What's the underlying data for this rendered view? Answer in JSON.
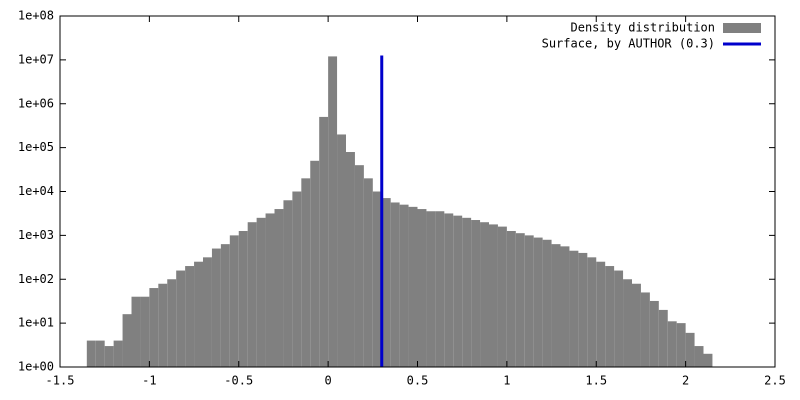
{
  "chart_data": {
    "type": "histogram",
    "log_y": true,
    "bins": [
      -1.35,
      -1.3,
      -1.25,
      -1.2,
      -1.15,
      -1.1,
      -1.05,
      -1.0,
      -0.95,
      -0.9,
      -0.85,
      -0.8,
      -0.75,
      -0.7,
      -0.65,
      -0.6,
      -0.55,
      -0.5,
      -0.45,
      -0.4,
      -0.35,
      -0.3,
      -0.25,
      -0.2,
      -0.15,
      -0.1,
      -0.05,
      0.0,
      0.05,
      0.1,
      0.15,
      0.2,
      0.25,
      0.3,
      0.35,
      0.4,
      0.45,
      0.5,
      0.55,
      0.6,
      0.65,
      0.7,
      0.75,
      0.8,
      0.85,
      0.9,
      0.95,
      1.0,
      1.05,
      1.1,
      1.15,
      1.2,
      1.25,
      1.3,
      1.35,
      1.4,
      1.45,
      1.5,
      1.55,
      1.6,
      1.65,
      1.7,
      1.75,
      1.8,
      1.85,
      1.9,
      1.95,
      2.0,
      2.05,
      2.1,
      2.15
    ],
    "series": [
      {
        "name": "Density distribution",
        "color": "#808080",
        "values": [
          4,
          4,
          3,
          4,
          16,
          40,
          40,
          63,
          79,
          100,
          158,
          200,
          251,
          316,
          501,
          631,
          1000,
          1259,
          1995,
          2512,
          3162,
          3981,
          6310,
          10000,
          19953,
          50119,
          501187,
          12000000,
          199526,
          79433,
          39811,
          19953,
          10000,
          7079,
          5623,
          5012,
          4467,
          3981,
          3548,
          3548,
          3162,
          2818,
          2512,
          2239,
          1995,
          1778,
          1585,
          1259,
          1122,
          1000,
          891,
          794,
          631,
          562,
          447,
          398,
          316,
          251,
          200,
          158,
          100,
          79,
          50,
          32,
          20,
          11,
          10,
          6,
          3,
          2
        ]
      }
    ],
    "vertical_line": {
      "name": "Surface, by AUTHOR (0.3)",
      "color": "#0000cc",
      "x": 0.3,
      "y": [
        1,
        12600000
      ]
    },
    "xlim": [
      -1.5,
      2.5
    ],
    "xticks": [
      -1.5,
      -1,
      -0.5,
      0,
      0.5,
      1,
      1.5,
      2,
      2.5
    ],
    "ylim": [
      1,
      100000000
    ],
    "yticks": [
      {
        "value": 1,
        "label": "1e+00"
      },
      {
        "value": 10,
        "label": "1e+01"
      },
      {
        "value": 100,
        "label": "1e+02"
      },
      {
        "value": 1000,
        "label": "1e+03"
      },
      {
        "value": 10000,
        "label": "1e+04"
      },
      {
        "value": 100000,
        "label": "1e+05"
      },
      {
        "value": 1000000,
        "label": "1e+06"
      },
      {
        "value": 10000000,
        "label": "1e+07"
      },
      {
        "value": 100000000,
        "label": "1e+08"
      }
    ],
    "legend": "top-right"
  }
}
